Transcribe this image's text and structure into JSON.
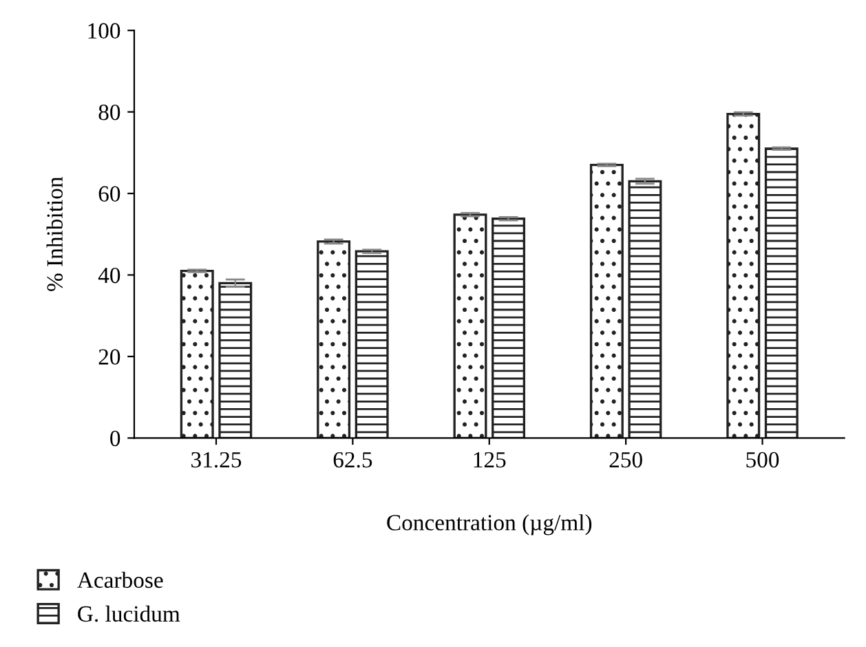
{
  "chart_data": {
    "type": "bar",
    "xlabel": "Concentration (µg/ml)",
    "ylabel": "% Inhibition",
    "categories": [
      "31.25",
      "62.5",
      "125",
      "250",
      "500"
    ],
    "series": [
      {
        "name": "Acarbose",
        "color": "#222222",
        "values": [
          41,
          48.2,
          54.8,
          67,
          79.5
        ],
        "errors": [
          0.3,
          0.5,
          0.4,
          0.3,
          0.4
        ]
      },
      {
        "name": "G. lucidum",
        "color": "#222222",
        "values": [
          38,
          45.8,
          53.8,
          63,
          71
        ],
        "errors": [
          0.9,
          0.4,
          0.4,
          0.6,
          0.3
        ]
      }
    ],
    "ylim": [
      0,
      100
    ],
    "yticks": [
      0,
      20,
      40,
      60,
      80,
      100
    ],
    "grid": false,
    "legend": "bottom left"
  }
}
